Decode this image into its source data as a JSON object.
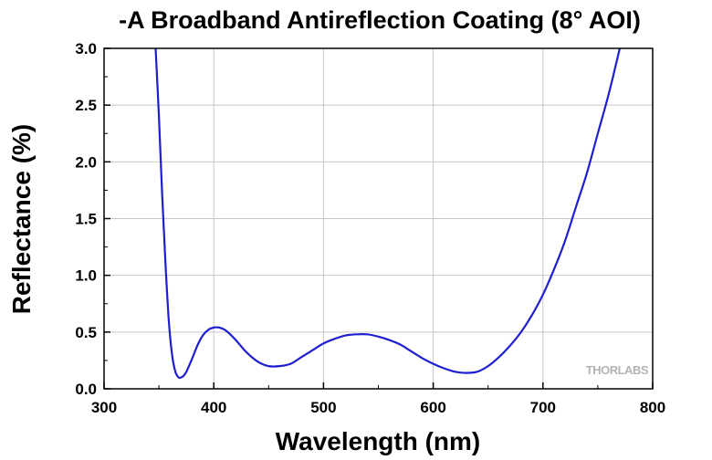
{
  "chart_data": {
    "type": "line",
    "title": "-A Broadband Antireflection Coating (8° AOI)",
    "xlabel": "Wavelength (nm)",
    "ylabel": "Reflectance (%)",
    "xlim": [
      300,
      800
    ],
    "ylim": [
      0,
      3.0
    ],
    "x_ticks": [
      "300",
      "400",
      "500",
      "600",
      "700",
      "800"
    ],
    "y_ticks": [
      "0.0",
      "0.5",
      "1.0",
      "1.5",
      "2.0",
      "2.5",
      "3.0"
    ],
    "grid": true,
    "line_color": "#1f1fd0",
    "watermark": "THORLABS",
    "series": [
      {
        "x": [
          347,
          350,
          353,
          356,
          359,
          362,
          365,
          368,
          370,
          372,
          375,
          380,
          385,
          390,
          395,
          400,
          405,
          410,
          415,
          420,
          430,
          440,
          450,
          460,
          470,
          480,
          490,
          500,
          510,
          520,
          530,
          540,
          550,
          560,
          570,
          580,
          590,
          600,
          610,
          620,
          630,
          640,
          650,
          660,
          670,
          680,
          690,
          700,
          710,
          720,
          730,
          740,
          750,
          760,
          770
        ],
        "y": [
          3.0,
          2.4,
          1.7,
          1.1,
          0.6,
          0.3,
          0.15,
          0.1,
          0.1,
          0.11,
          0.15,
          0.26,
          0.38,
          0.47,
          0.52,
          0.54,
          0.54,
          0.52,
          0.48,
          0.43,
          0.32,
          0.24,
          0.2,
          0.2,
          0.22,
          0.28,
          0.34,
          0.4,
          0.44,
          0.47,
          0.48,
          0.48,
          0.46,
          0.43,
          0.39,
          0.33,
          0.27,
          0.22,
          0.18,
          0.15,
          0.14,
          0.15,
          0.2,
          0.28,
          0.38,
          0.5,
          0.65,
          0.83,
          1.05,
          1.3,
          1.6,
          1.9,
          2.25,
          2.6,
          3.0
        ]
      }
    ]
  }
}
